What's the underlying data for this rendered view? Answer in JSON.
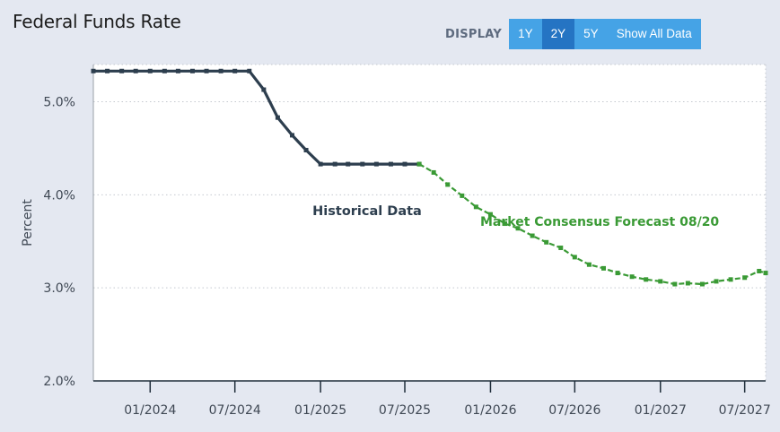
{
  "header": {
    "title": "Federal Funds Rate",
    "display_label": "DISPLAY",
    "buttons": [
      {
        "label": "1Y",
        "active": false
      },
      {
        "label": "2Y",
        "active": true
      },
      {
        "label": "5Y",
        "active": false
      },
      {
        "label": "Show All Data",
        "active": false
      }
    ]
  },
  "chart_data": {
    "type": "line",
    "ylabel": "Percent",
    "ylim": [
      2.0,
      5.4
    ],
    "yticks": [
      2.0,
      3.0,
      4.0,
      5.0
    ],
    "ytick_labels": [
      "2.0%",
      "3.0%",
      "4.0%",
      "5.0%"
    ],
    "xlim": [
      "2023-09-01",
      "2027-08-15"
    ],
    "xticks": [
      "2024-01-01",
      "2024-07-01",
      "2025-01-01",
      "2025-07-01",
      "2026-01-01",
      "2026-07-01",
      "2027-01-01",
      "2027-07-01"
    ],
    "xtick_labels": [
      "01/2024",
      "07/2024",
      "01/2025",
      "07/2025",
      "01/2026",
      "07/2026",
      "01/2027",
      "07/2027"
    ],
    "grid": true,
    "colors": {
      "historical": "#2d3e4e",
      "forecast": "#3a9a35"
    },
    "series": [
      {
        "name": "Historical Data",
        "style": "solid",
        "points": [
          [
            "2023-09-01",
            5.33
          ],
          [
            "2023-10-01",
            5.33
          ],
          [
            "2023-11-01",
            5.33
          ],
          [
            "2023-12-01",
            5.33
          ],
          [
            "2024-01-01",
            5.33
          ],
          [
            "2024-02-01",
            5.33
          ],
          [
            "2024-03-01",
            5.33
          ],
          [
            "2024-04-01",
            5.33
          ],
          [
            "2024-05-01",
            5.33
          ],
          [
            "2024-06-01",
            5.33
          ],
          [
            "2024-07-01",
            5.33
          ],
          [
            "2024-08-01",
            5.33
          ],
          [
            "2024-09-01",
            5.13
          ],
          [
            "2024-10-01",
            4.83
          ],
          [
            "2024-11-01",
            4.64
          ],
          [
            "2024-12-01",
            4.48
          ],
          [
            "2025-01-01",
            4.33
          ],
          [
            "2025-02-01",
            4.33
          ],
          [
            "2025-03-01",
            4.33
          ],
          [
            "2025-04-01",
            4.33
          ],
          [
            "2025-05-01",
            4.33
          ],
          [
            "2025-06-01",
            4.33
          ],
          [
            "2025-07-01",
            4.33
          ],
          [
            "2025-08-01",
            4.33
          ]
        ]
      },
      {
        "name": "Market Consensus Forecast 08/20",
        "style": "dashed",
        "points": [
          [
            "2025-08-01",
            4.33
          ],
          [
            "2025-09-01",
            4.24
          ],
          [
            "2025-10-01",
            4.11
          ],
          [
            "2025-11-01",
            3.99
          ],
          [
            "2025-12-01",
            3.87
          ],
          [
            "2026-01-01",
            3.79
          ],
          [
            "2026-02-01",
            3.69
          ],
          [
            "2026-03-01",
            3.64
          ],
          [
            "2026-04-01",
            3.56
          ],
          [
            "2026-05-01",
            3.49
          ],
          [
            "2026-06-01",
            3.43
          ],
          [
            "2026-07-01",
            3.33
          ],
          [
            "2026-08-01",
            3.25
          ],
          [
            "2026-09-01",
            3.21
          ],
          [
            "2026-10-01",
            3.16
          ],
          [
            "2026-11-01",
            3.12
          ],
          [
            "2026-12-01",
            3.09
          ],
          [
            "2027-01-01",
            3.07
          ],
          [
            "2027-02-01",
            3.04
          ],
          [
            "2027-03-01",
            3.05
          ],
          [
            "2027-04-01",
            3.04
          ],
          [
            "2027-05-01",
            3.07
          ],
          [
            "2027-06-01",
            3.09
          ],
          [
            "2027-07-01",
            3.11
          ],
          [
            "2027-08-01",
            3.18
          ],
          [
            "2027-08-15",
            3.16
          ]
        ]
      }
    ],
    "annotations": [
      {
        "text": "Historical Data",
        "series": "Historical Data"
      },
      {
        "text": "Market Consensus Forecast 08/20",
        "series": "Market Consensus Forecast 08/20"
      }
    ]
  }
}
